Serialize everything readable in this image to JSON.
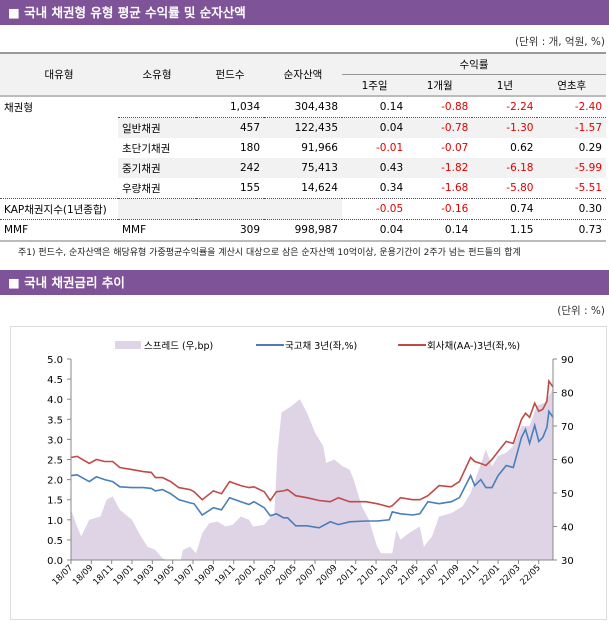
{
  "section1": {
    "title": "■ 국내 채권형 유형 평균 수익률 및 순자산액",
    "unit": "(단위 : 개, 억원, %)",
    "headers": {
      "major": "대유형",
      "minor": "소유형",
      "funds": "펀드수",
      "assets": "순자산액",
      "returns": "수익률",
      "w1": "1주일",
      "m1": "1개월",
      "y1": "1년",
      "ytd": "연초후"
    },
    "rows": [
      {
        "major": "채권형",
        "minor": "",
        "funds": "1,034",
        "assets": "304,438",
        "w1": "0.14",
        "m1": "-0.88",
        "y1": "-2.24",
        "ytd": "-2.40"
      },
      {
        "major": "",
        "minor": "일반채권",
        "funds": "457",
        "assets": "122,435",
        "w1": "0.04",
        "m1": "-0.78",
        "y1": "-1.30",
        "ytd": "-1.57"
      },
      {
        "major": "",
        "minor": "초단기채권",
        "funds": "180",
        "assets": "91,966",
        "w1": "-0.01",
        "m1": "-0.07",
        "y1": "0.62",
        "ytd": "0.29"
      },
      {
        "major": "",
        "minor": "중기채권",
        "funds": "242",
        "assets": "75,413",
        "w1": "0.43",
        "m1": "-1.82",
        "y1": "-6.18",
        "ytd": "-5.99"
      },
      {
        "major": "",
        "minor": "우량채권",
        "funds": "155",
        "assets": "14,624",
        "w1": "0.34",
        "m1": "-1.68",
        "y1": "-5.80",
        "ytd": "-5.51"
      },
      {
        "major": "KAP채권지수(1년종합)",
        "minor": "",
        "funds": "",
        "assets": "",
        "w1": "-0.05",
        "m1": "-0.16",
        "y1": "0.74",
        "ytd": "0.30"
      },
      {
        "major": "MMF",
        "minor": "MMF",
        "funds": "309",
        "assets": "998,987",
        "w1": "0.04",
        "m1": "0.14",
        "y1": "1.15",
        "ytd": "0.73"
      }
    ],
    "note": "주1) 펀드수, 순자산액은 해당유형 가중평균수익률을 계산시 대상으로 삼은 순자산액 10억이상, 운용기간이 2주가 넘는 펀드들의 합계"
  },
  "section2": {
    "title": "■ 국내 채권금리 추이",
    "unit": "(단위 : %)"
  },
  "chart_data": {
    "type": "line",
    "x_unit": "months since 18/07",
    "xticks": [
      "18/07",
      "18/09",
      "18/11",
      "19/01",
      "19/03",
      "19/05",
      "19/07",
      "19/09",
      "19/11",
      "20/01",
      "20/03",
      "20/05",
      "20/07",
      "20/09",
      "20/11",
      "21/01",
      "21/03",
      "21/05",
      "21/07",
      "21/09",
      "21/11",
      "22/01",
      "22/03",
      "22/05"
    ],
    "xlim": [
      0,
      47.4
    ],
    "ylim": [
      0,
      5
    ],
    "yticks": [
      "0.0",
      "0.5",
      "1.0",
      "1.5",
      "2.0",
      "2.5",
      "3.0",
      "3.5",
      "4.0",
      "4.5",
      "5.0"
    ],
    "y2lim": [
      30,
      90
    ],
    "y2ticks": [
      "30",
      "40",
      "50",
      "60",
      "70",
      "80",
      "90"
    ],
    "legend": "top",
    "colors": {
      "spread": "#dfd3e6",
      "govt": "#4a7ebb",
      "corp": "#be4b48"
    },
    "series": [
      {
        "name": "스프레드 (우,bp)",
        "type": "area",
        "axis": "right",
        "points": [
          [
            0,
            45
          ],
          [
            0.6,
            40
          ],
          [
            1.0,
            37
          ],
          [
            1.8,
            42
          ],
          [
            2.9,
            43
          ],
          [
            3.5,
            48
          ],
          [
            4.1,
            49
          ],
          [
            4.8,
            45
          ],
          [
            6.0,
            42
          ],
          [
            6.7,
            38
          ],
          [
            7.5,
            34
          ],
          [
            8.3,
            33
          ],
          [
            9.0,
            30.5
          ],
          [
            9.4,
            30
          ],
          [
            10.8,
            30
          ],
          [
            11.0,
            33
          ],
          [
            11.7,
            34
          ],
          [
            12.3,
            32
          ],
          [
            12.9,
            38
          ],
          [
            13.6,
            41
          ],
          [
            14.4,
            41.5
          ],
          [
            15.2,
            40
          ],
          [
            15.9,
            40.5
          ],
          [
            16.7,
            43
          ],
          [
            17.5,
            42
          ],
          [
            17.9,
            40
          ],
          [
            19.0,
            40.5
          ],
          [
            20.0,
            44
          ],
          [
            20.3,
            62
          ],
          [
            20.7,
            74
          ],
          [
            21.7,
            76
          ],
          [
            22.5,
            78
          ],
          [
            23.2,
            74
          ],
          [
            24.0,
            68
          ],
          [
            24.8,
            64
          ],
          [
            25.1,
            59
          ],
          [
            25.9,
            60
          ],
          [
            26.7,
            58
          ],
          [
            27.4,
            57
          ],
          [
            27.8,
            54
          ],
          [
            28.6,
            46
          ],
          [
            29.3,
            42
          ],
          [
            30.1,
            34
          ],
          [
            30.5,
            32
          ],
          [
            31.6,
            32
          ],
          [
            32.0,
            39
          ],
          [
            32.4,
            36
          ],
          [
            33.2,
            38
          ],
          [
            34.3,
            40
          ],
          [
            34.7,
            34
          ],
          [
            35.5,
            37
          ],
          [
            36.2,
            43
          ],
          [
            37.4,
            44
          ],
          [
            38.5,
            46
          ],
          [
            39.3,
            50
          ],
          [
            40.1,
            57
          ],
          [
            40.8,
            63
          ],
          [
            41.4,
            58
          ],
          [
            42.0,
            61
          ],
          [
            42.8,
            62
          ],
          [
            43.5,
            64
          ],
          [
            44.3,
            70
          ],
          [
            45.1,
            70
          ],
          [
            45.8,
            76
          ],
          [
            46.6,
            77
          ],
          [
            47.2,
            80
          ],
          [
            47.4,
            82
          ]
        ]
      },
      {
        "name": "국고채 3년(좌,%)",
        "type": "line",
        "axis": "left",
        "points": [
          [
            0,
            2.1
          ],
          [
            0.6,
            2.12
          ],
          [
            1.8,
            1.95
          ],
          [
            2.5,
            2.07
          ],
          [
            3.3,
            2.0
          ],
          [
            4.1,
            1.95
          ],
          [
            4.8,
            1.82
          ],
          [
            6.0,
            1.8
          ],
          [
            7.1,
            1.8
          ],
          [
            7.9,
            1.78
          ],
          [
            8.3,
            1.72
          ],
          [
            9.0,
            1.75
          ],
          [
            9.8,
            1.65
          ],
          [
            10.6,
            1.5
          ],
          [
            11.7,
            1.42
          ],
          [
            12.1,
            1.4
          ],
          [
            12.9,
            1.12
          ],
          [
            14.0,
            1.3
          ],
          [
            14.8,
            1.25
          ],
          [
            15.6,
            1.55
          ],
          [
            16.7,
            1.45
          ],
          [
            17.5,
            1.38
          ],
          [
            18.0,
            1.45
          ],
          [
            19.0,
            1.3
          ],
          [
            19.6,
            1.1
          ],
          [
            20.2,
            1.15
          ],
          [
            20.9,
            1.05
          ],
          [
            21.3,
            1.05
          ],
          [
            22.1,
            0.85
          ],
          [
            23.2,
            0.85
          ],
          [
            24.4,
            0.8
          ],
          [
            25.5,
            0.95
          ],
          [
            26.3,
            0.88
          ],
          [
            27.4,
            0.95
          ],
          [
            29.0,
            0.97
          ],
          [
            30.1,
            0.97
          ],
          [
            31.3,
            1.0
          ],
          [
            31.6,
            1.2
          ],
          [
            32.4,
            1.15
          ],
          [
            33.6,
            1.12
          ],
          [
            34.3,
            1.15
          ],
          [
            35.1,
            1.45
          ],
          [
            36.2,
            1.4
          ],
          [
            37.4,
            1.45
          ],
          [
            38.2,
            1.55
          ],
          [
            39.3,
            2.1
          ],
          [
            39.7,
            1.85
          ],
          [
            40.3,
            2.0
          ],
          [
            40.8,
            1.8
          ],
          [
            41.4,
            1.8
          ],
          [
            42.0,
            2.1
          ],
          [
            42.8,
            2.35
          ],
          [
            43.5,
            2.3
          ],
          [
            44.3,
            3.05
          ],
          [
            44.7,
            3.25
          ],
          [
            45.1,
            2.9
          ],
          [
            45.6,
            3.35
          ],
          [
            46.0,
            2.95
          ],
          [
            46.4,
            3.05
          ],
          [
            46.8,
            3.3
          ],
          [
            47.0,
            3.7
          ],
          [
            47.4,
            3.55
          ]
        ]
      },
      {
        "name": "회사채(AA-)3년(좌,%)",
        "type": "line",
        "axis": "left",
        "points": [
          [
            0,
            2.55
          ],
          [
            0.6,
            2.58
          ],
          [
            1.8,
            2.4
          ],
          [
            2.5,
            2.5
          ],
          [
            3.3,
            2.45
          ],
          [
            4.1,
            2.45
          ],
          [
            4.8,
            2.3
          ],
          [
            6.0,
            2.25
          ],
          [
            7.1,
            2.2
          ],
          [
            7.9,
            2.18
          ],
          [
            8.3,
            2.05
          ],
          [
            9.0,
            2.05
          ],
          [
            9.8,
            1.95
          ],
          [
            10.6,
            1.8
          ],
          [
            11.7,
            1.75
          ],
          [
            12.1,
            1.7
          ],
          [
            12.9,
            1.5
          ],
          [
            14.0,
            1.72
          ],
          [
            14.8,
            1.65
          ],
          [
            15.6,
            1.95
          ],
          [
            16.7,
            1.85
          ],
          [
            17.5,
            1.8
          ],
          [
            18.0,
            1.82
          ],
          [
            19.0,
            1.7
          ],
          [
            19.6,
            1.48
          ],
          [
            20.2,
            1.7
          ],
          [
            20.9,
            1.72
          ],
          [
            21.3,
            1.75
          ],
          [
            22.1,
            1.6
          ],
          [
            23.2,
            1.55
          ],
          [
            24.4,
            1.48
          ],
          [
            25.5,
            1.45
          ],
          [
            26.3,
            1.55
          ],
          [
            27.4,
            1.45
          ],
          [
            29.0,
            1.45
          ],
          [
            30.1,
            1.4
          ],
          [
            31.3,
            1.32
          ],
          [
            31.6,
            1.35
          ],
          [
            32.4,
            1.55
          ],
          [
            33.6,
            1.5
          ],
          [
            34.3,
            1.5
          ],
          [
            35.1,
            1.6
          ],
          [
            36.2,
            1.85
          ],
          [
            37.4,
            1.82
          ],
          [
            38.2,
            1.95
          ],
          [
            39.3,
            2.55
          ],
          [
            39.7,
            2.45
          ],
          [
            40.3,
            2.4
          ],
          [
            40.8,
            2.35
          ],
          [
            41.4,
            2.5
          ],
          [
            42.0,
            2.7
          ],
          [
            42.8,
            2.95
          ],
          [
            43.5,
            2.9
          ],
          [
            44.3,
            3.5
          ],
          [
            44.7,
            3.65
          ],
          [
            45.1,
            3.55
          ],
          [
            45.6,
            3.9
          ],
          [
            46.0,
            3.7
          ],
          [
            46.4,
            3.75
          ],
          [
            46.8,
            3.95
          ],
          [
            47.0,
            4.45
          ],
          [
            47.4,
            4.3
          ]
        ]
      }
    ]
  }
}
